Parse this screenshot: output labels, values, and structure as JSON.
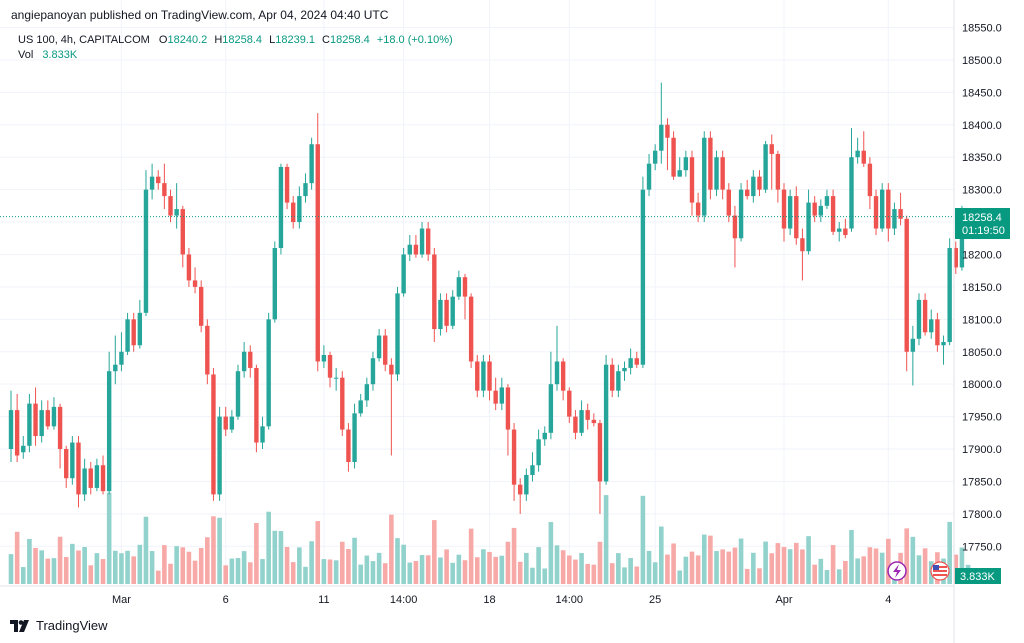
{
  "header": {
    "attribution": "angiepanoyan published on TradingView.com, Apr 04, 2024 04:40 UTC",
    "symbol": "US 100, 4h, CAPITALCOM",
    "ohlc": {
      "o_label": "O",
      "o": "18240.2",
      "h_label": "H",
      "h": "18258.4",
      "l_label": "L",
      "l": "18239.1",
      "c_label": "C",
      "c": "18258.4",
      "change": "+18.0 (+0.10%)"
    },
    "vol_label": "Vol",
    "vol_value": "3.833K"
  },
  "price_tag": {
    "price": "18258.4",
    "countdown": "01:19:50"
  },
  "volume_tag": "3.833K",
  "footer": {
    "brand": "TradingView"
  },
  "colors": {
    "up": "#26a69a",
    "down": "#ef5350",
    "up_text": "#089981",
    "vol_up": "#92d2cc",
    "vol_down": "#f7a9a7"
  },
  "chart_data": {
    "type": "candlestick",
    "symbol": "US 100",
    "interval": "4h",
    "y_ticks": [
      "18550.0",
      "18500.0",
      "18450.0",
      "18400.0",
      "18350.0",
      "18300.0",
      "18250.0",
      "18200.0",
      "18150.0",
      "18100.0",
      "18050.0",
      "18000.0",
      "17950.0",
      "17900.0",
      "17850.0",
      "17800.0",
      "17750.0"
    ],
    "y_range": [
      17700,
      18555
    ],
    "x_labels": [
      {
        "label": "Mar",
        "index": 18
      },
      {
        "label": "6",
        "index": 35
      },
      {
        "label": "11",
        "index": 51
      },
      {
        "label": "14:00",
        "index": 64
      },
      {
        "label": "18",
        "index": 78
      },
      {
        "label": "14:00",
        "index": 91
      },
      {
        "label": "25",
        "index": 105
      },
      {
        "label": "Apr",
        "index": 126
      },
      {
        "label": "4",
        "index": 143
      }
    ],
    "last_price": 18258.4,
    "candles": [
      {
        "o": 17900,
        "c": 17960,
        "h": 17990,
        "l": 17880
      },
      {
        "o": 17960,
        "c": 17890,
        "h": 17985,
        "l": 17880
      },
      {
        "o": 17895,
        "c": 17905,
        "h": 17920,
        "l": 17885
      },
      {
        "o": 17905,
        "c": 17970,
        "h": 17985,
        "l": 17895
      },
      {
        "o": 17970,
        "c": 17920,
        "h": 17995,
        "l": 17905
      },
      {
        "o": 17920,
        "c": 17960,
        "h": 17975,
        "l": 17910
      },
      {
        "o": 17960,
        "c": 17935,
        "h": 17975,
        "l": 17930
      },
      {
        "o": 17935,
        "c": 17965,
        "h": 17980,
        "l": 17930
      },
      {
        "o": 17965,
        "c": 17900,
        "h": 17970,
        "l": 17870
      },
      {
        "o": 17900,
        "c": 17855,
        "h": 17905,
        "l": 17840
      },
      {
        "o": 17855,
        "c": 17910,
        "h": 17920,
        "l": 17845
      },
      {
        "o": 17910,
        "c": 17830,
        "h": 17920,
        "l": 17810
      },
      {
        "o": 17830,
        "c": 17870,
        "h": 17885,
        "l": 17820
      },
      {
        "o": 17870,
        "c": 17840,
        "h": 17880,
        "l": 17830
      },
      {
        "o": 17840,
        "c": 17875,
        "h": 17885,
        "l": 17835
      },
      {
        "o": 17875,
        "c": 17835,
        "h": 17890,
        "l": 17830
      },
      {
        "o": 17835,
        "c": 18020,
        "h": 18050,
        "l": 17830
      },
      {
        "o": 18020,
        "c": 18030,
        "h": 18075,
        "l": 18000
      },
      {
        "o": 18030,
        "c": 18050,
        "h": 18080,
        "l": 18020
      },
      {
        "o": 18050,
        "c": 18100,
        "h": 18110,
        "l": 18045
      },
      {
        "o": 18100,
        "c": 18060,
        "h": 18110,
        "l": 18050
      },
      {
        "o": 18060,
        "c": 18110,
        "h": 18130,
        "l": 18055
      },
      {
        "o": 18110,
        "c": 18300,
        "h": 18330,
        "l": 18105
      },
      {
        "o": 18300,
        "c": 18320,
        "h": 18340,
        "l": 18285
      },
      {
        "o": 18320,
        "c": 18310,
        "h": 18330,
        "l": 18300
      },
      {
        "o": 18310,
        "c": 18290,
        "h": 18340,
        "l": 18270
      },
      {
        "o": 18290,
        "c": 18260,
        "h": 18300,
        "l": 18250
      },
      {
        "o": 18260,
        "c": 18270,
        "h": 18310,
        "l": 18240
      },
      {
        "o": 18270,
        "c": 18200,
        "h": 18275,
        "l": 18180
      },
      {
        "o": 18200,
        "c": 18160,
        "h": 18210,
        "l": 18150
      },
      {
        "o": 18160,
        "c": 18150,
        "h": 18180,
        "l": 18140
      },
      {
        "o": 18150,
        "c": 18090,
        "h": 18160,
        "l": 18080
      },
      {
        "o": 18090,
        "c": 18015,
        "h": 18100,
        "l": 18000
      },
      {
        "o": 18015,
        "c": 17830,
        "h": 18025,
        "l": 17820
      },
      {
        "o": 17830,
        "c": 17950,
        "h": 17965,
        "l": 17820
      },
      {
        "o": 17950,
        "c": 17930,
        "h": 17965,
        "l": 17920
      },
      {
        "o": 17930,
        "c": 17950,
        "h": 17960,
        "l": 17925
      },
      {
        "o": 17950,
        "c": 18020,
        "h": 18030,
        "l": 17945
      },
      {
        "o": 18020,
        "c": 18050,
        "h": 18065,
        "l": 18010
      },
      {
        "o": 18050,
        "c": 18025,
        "h": 18060,
        "l": 18010
      },
      {
        "o": 18025,
        "c": 17910,
        "h": 18030,
        "l": 17895
      },
      {
        "o": 17910,
        "c": 17935,
        "h": 17950,
        "l": 17900
      },
      {
        "o": 17935,
        "c": 18100,
        "h": 18110,
        "l": 17930
      },
      {
        "o": 18100,
        "c": 18210,
        "h": 18220,
        "l": 18095
      },
      {
        "o": 18210,
        "c": 18335,
        "h": 18340,
        "l": 18200
      },
      {
        "o": 18335,
        "c": 18280,
        "h": 18340,
        "l": 18270
      },
      {
        "o": 18280,
        "c": 18250,
        "h": 18290,
        "l": 18240
      },
      {
        "o": 18250,
        "c": 18290,
        "h": 18305,
        "l": 18240
      },
      {
        "o": 18290,
        "c": 18310,
        "h": 18325,
        "l": 18280
      },
      {
        "o": 18310,
        "c": 18370,
        "h": 18380,
        "l": 18300
      },
      {
        "o": 18370,
        "c": 18035,
        "h": 18418,
        "l": 18020
      },
      {
        "o": 18035,
        "c": 18045,
        "h": 18060,
        "l": 18025
      },
      {
        "o": 18045,
        "c": 18010,
        "h": 18050,
        "l": 17995
      },
      {
        "o": 18010,
        "c": 18010,
        "h": 18025,
        "l": 17990
      },
      {
        "o": 18010,
        "c": 17930,
        "h": 18020,
        "l": 17920
      },
      {
        "o": 17930,
        "c": 17880,
        "h": 17940,
        "l": 17865
      },
      {
        "o": 17880,
        "c": 17955,
        "h": 17970,
        "l": 17870
      },
      {
        "o": 17955,
        "c": 17975,
        "h": 17985,
        "l": 17950
      },
      {
        "o": 17975,
        "c": 18000,
        "h": 18010,
        "l": 17965
      },
      {
        "o": 18000,
        "c": 18040,
        "h": 18050,
        "l": 17990
      },
      {
        "o": 18040,
        "c": 18075,
        "h": 18085,
        "l": 18035
      },
      {
        "o": 18075,
        "c": 18030,
        "h": 18085,
        "l": 18020
      },
      {
        "o": 18030,
        "c": 18015,
        "h": 18040,
        "l": 17890
      },
      {
        "o": 18015,
        "c": 18140,
        "h": 18150,
        "l": 18005
      },
      {
        "o": 18140,
        "c": 18200,
        "h": 18210,
        "l": 18135
      },
      {
        "o": 18200,
        "c": 18215,
        "h": 18230,
        "l": 18190
      },
      {
        "o": 18215,
        "c": 18200,
        "h": 18230,
        "l": 18195
      },
      {
        "o": 18200,
        "c": 18240,
        "h": 18250,
        "l": 18195
      },
      {
        "o": 18240,
        "c": 18200,
        "h": 18250,
        "l": 18190
      },
      {
        "o": 18200,
        "c": 18085,
        "h": 18210,
        "l": 18065
      },
      {
        "o": 18085,
        "c": 18130,
        "h": 18140,
        "l": 18075
      },
      {
        "o": 18130,
        "c": 18090,
        "h": 18140,
        "l": 18080
      },
      {
        "o": 18090,
        "c": 18135,
        "h": 18145,
        "l": 18085
      },
      {
        "o": 18135,
        "c": 18165,
        "h": 18175,
        "l": 18130
      },
      {
        "o": 18165,
        "c": 18135,
        "h": 18170,
        "l": 18100
      },
      {
        "o": 18135,
        "c": 18035,
        "h": 18140,
        "l": 18025
      },
      {
        "o": 18035,
        "c": 17990,
        "h": 18045,
        "l": 17980
      },
      {
        "o": 17990,
        "c": 18035,
        "h": 18045,
        "l": 17980
      },
      {
        "o": 18035,
        "c": 17990,
        "h": 18045,
        "l": 17975
      },
      {
        "o": 17990,
        "c": 17970,
        "h": 18010,
        "l": 17960
      },
      {
        "o": 17970,
        "c": 17995,
        "h": 18010,
        "l": 17960
      },
      {
        "o": 17995,
        "c": 17930,
        "h": 18000,
        "l": 17890
      },
      {
        "o": 17930,
        "c": 17845,
        "h": 17940,
        "l": 17820
      },
      {
        "o": 17845,
        "c": 17830,
        "h": 17855,
        "l": 17800
      },
      {
        "o": 17830,
        "c": 17860,
        "h": 17870,
        "l": 17820
      },
      {
        "o": 17860,
        "c": 17875,
        "h": 17895,
        "l": 17850
      },
      {
        "o": 17875,
        "c": 17915,
        "h": 17930,
        "l": 17865
      },
      {
        "o": 17915,
        "c": 17925,
        "h": 17935,
        "l": 17905
      },
      {
        "o": 17925,
        "c": 18000,
        "h": 18050,
        "l": 17915
      },
      {
        "o": 18000,
        "c": 18035,
        "h": 18090,
        "l": 17990
      },
      {
        "o": 18035,
        "c": 17990,
        "h": 18040,
        "l": 17975
      },
      {
        "o": 17990,
        "c": 17950,
        "h": 17995,
        "l": 17940
      },
      {
        "o": 17950,
        "c": 17925,
        "h": 17960,
        "l": 17915
      },
      {
        "o": 17925,
        "c": 17960,
        "h": 17975,
        "l": 17920
      },
      {
        "o": 17960,
        "c": 17945,
        "h": 17970,
        "l": 17930
      },
      {
        "o": 17945,
        "c": 17940,
        "h": 17955,
        "l": 17935
      },
      {
        "o": 17940,
        "c": 17850,
        "h": 17945,
        "l": 17800
      },
      {
        "o": 17850,
        "c": 18030,
        "h": 18045,
        "l": 17845
      },
      {
        "o": 18030,
        "c": 17990,
        "h": 18040,
        "l": 17980
      },
      {
        "o": 17990,
        "c": 18020,
        "h": 18030,
        "l": 17980
      },
      {
        "o": 18020,
        "c": 18025,
        "h": 18035,
        "l": 18005
      },
      {
        "o": 18025,
        "c": 18040,
        "h": 18055,
        "l": 18015
      },
      {
        "o": 18040,
        "c": 18030,
        "h": 18050,
        "l": 18025
      },
      {
        "o": 18030,
        "c": 18300,
        "h": 18320,
        "l": 18025
      },
      {
        "o": 18300,
        "c": 18340,
        "h": 18355,
        "l": 18290
      },
      {
        "o": 18340,
        "c": 18360,
        "h": 18370,
        "l": 18330
      },
      {
        "o": 18360,
        "c": 18400,
        "h": 18465,
        "l": 18340
      },
      {
        "o": 18400,
        "c": 18380,
        "h": 18410,
        "l": 18330
      },
      {
        "o": 18380,
        "c": 18320,
        "h": 18390,
        "l": 18315
      },
      {
        "o": 18320,
        "c": 18330,
        "h": 18350,
        "l": 18320
      },
      {
        "o": 18330,
        "c": 18350,
        "h": 18360,
        "l": 18320
      },
      {
        "o": 18350,
        "c": 18280,
        "h": 18360,
        "l": 18260
      },
      {
        "o": 18280,
        "c": 18260,
        "h": 18295,
        "l": 18250
      },
      {
        "o": 18260,
        "c": 18380,
        "h": 18390,
        "l": 18250
      },
      {
        "o": 18380,
        "c": 18300,
        "h": 18390,
        "l": 18285
      },
      {
        "o": 18300,
        "c": 18350,
        "h": 18360,
        "l": 18290
      },
      {
        "o": 18350,
        "c": 18300,
        "h": 18360,
        "l": 18285
      },
      {
        "o": 18300,
        "c": 18260,
        "h": 18310,
        "l": 18250
      },
      {
        "o": 18260,
        "c": 18225,
        "h": 18275,
        "l": 18180
      },
      {
        "o": 18225,
        "c": 18300,
        "h": 18310,
        "l": 18220
      },
      {
        "o": 18300,
        "c": 18290,
        "h": 18315,
        "l": 18285
      },
      {
        "o": 18290,
        "c": 18320,
        "h": 18330,
        "l": 18280
      },
      {
        "o": 18320,
        "c": 18300,
        "h": 18330,
        "l": 18290
      },
      {
        "o": 18300,
        "c": 18370,
        "h": 18375,
        "l": 18295
      },
      {
        "o": 18370,
        "c": 18355,
        "h": 18385,
        "l": 18300
      },
      {
        "o": 18355,
        "c": 18300,
        "h": 18360,
        "l": 18280
      },
      {
        "o": 18300,
        "c": 18240,
        "h": 18310,
        "l": 18220
      },
      {
        "o": 18240,
        "c": 18290,
        "h": 18300,
        "l": 18230
      },
      {
        "o": 18290,
        "c": 18225,
        "h": 18305,
        "l": 18215
      },
      {
        "o": 18225,
        "c": 18205,
        "h": 18240,
        "l": 18160
      },
      {
        "o": 18205,
        "c": 18280,
        "h": 18300,
        "l": 18200
      },
      {
        "o": 18280,
        "c": 18260,
        "h": 18290,
        "l": 18250
      },
      {
        "o": 18260,
        "c": 18275,
        "h": 18285,
        "l": 18250
      },
      {
        "o": 18275,
        "c": 18290,
        "h": 18300,
        "l": 18270
      },
      {
        "o": 18290,
        "c": 18235,
        "h": 18300,
        "l": 18230
      },
      {
        "o": 18235,
        "c": 18240,
        "h": 18250,
        "l": 18220
      },
      {
        "o": 18240,
        "c": 18230,
        "h": 18255,
        "l": 18225
      },
      {
        "o": 18240,
        "c": 18350,
        "h": 18395,
        "l": 18235
      },
      {
        "o": 18350,
        "c": 18360,
        "h": 18380,
        "l": 18340
      },
      {
        "o": 18360,
        "c": 18340,
        "h": 18390,
        "l": 18335
      },
      {
        "o": 18340,
        "c": 18290,
        "h": 18350,
        "l": 18270
      },
      {
        "o": 18290,
        "c": 18240,
        "h": 18300,
        "l": 18230
      },
      {
        "o": 18240,
        "c": 18300,
        "h": 18310,
        "l": 18235
      },
      {
        "o": 18300,
        "c": 18240,
        "h": 18310,
        "l": 18220
      },
      {
        "o": 18240,
        "c": 18270,
        "h": 18280,
        "l": 18230
      },
      {
        "o": 18270,
        "c": 18255,
        "h": 18295,
        "l": 18245
      },
      {
        "o": 18255,
        "c": 18050,
        "h": 18260,
        "l": 18020
      },
      {
        "o": 18050,
        "c": 18070,
        "h": 18090,
        "l": 17998
      },
      {
        "o": 18070,
        "c": 18130,
        "h": 18140,
        "l": 18060
      },
      {
        "o": 18130,
        "c": 18080,
        "h": 18140,
        "l": 18075
      },
      {
        "o": 18080,
        "c": 18100,
        "h": 18115,
        "l": 18070
      },
      {
        "o": 18100,
        "c": 18060,
        "h": 18110,
        "l": 18050
      },
      {
        "o": 18060,
        "c": 18065,
        "h": 18075,
        "l": 18030
      },
      {
        "o": 18065,
        "c": 18210,
        "h": 18225,
        "l": 18060
      },
      {
        "o": 18210,
        "c": 18180,
        "h": 18220,
        "l": 18170
      },
      {
        "o": 18180,
        "c": 18240,
        "h": 18275,
        "l": 18175
      },
      {
        "o": 18240,
        "c": 18258.4,
        "h": 18258.4,
        "l": 18239.1
      }
    ],
    "volume_note": "per-candle volume bars in lower panel; last bar 3.833K"
  }
}
